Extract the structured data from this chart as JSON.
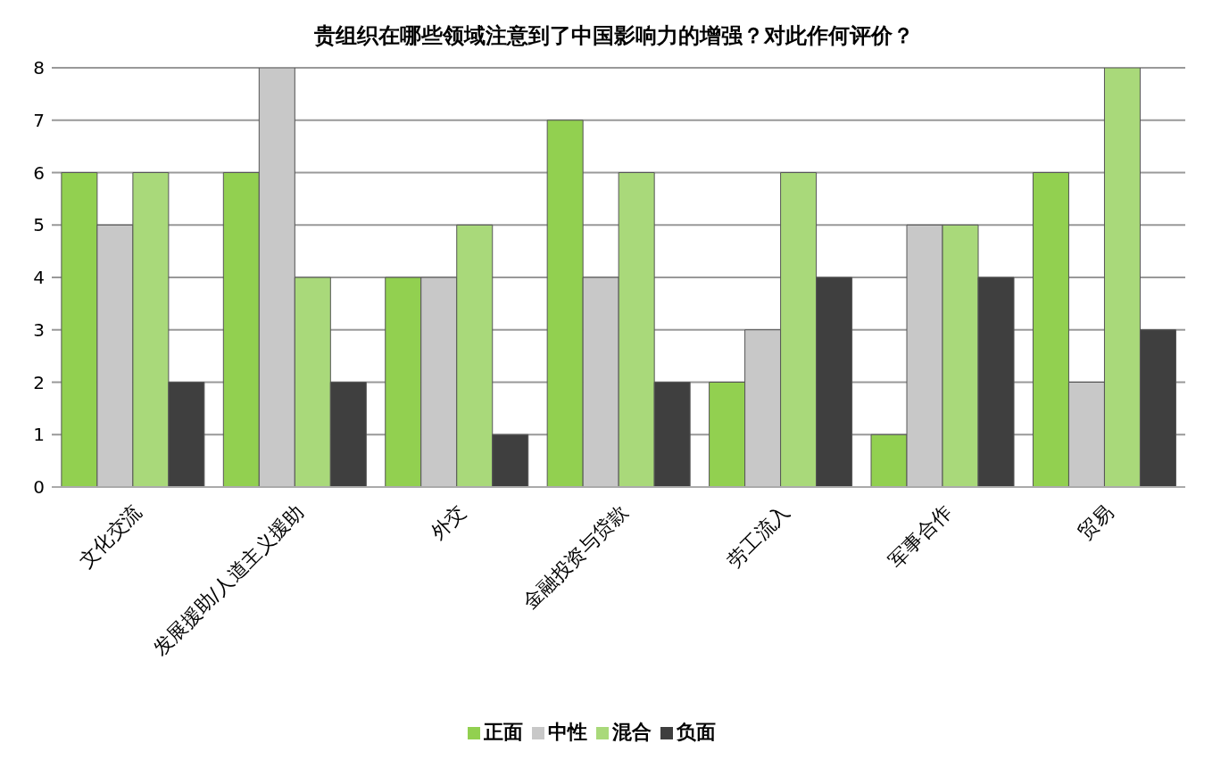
{
  "chart_data": {
    "type": "bar",
    "title": "贵组织在哪些领域注意到了中国影响力的增强？对此作何评价？",
    "categories": [
      "文化交流",
      "发展援助/人道主义援助",
      "外交",
      "金融投资与贷款",
      "劳工流入",
      "军事合作",
      "贸易"
    ],
    "series": [
      {
        "name": "正面",
        "color": "#92d050",
        "values": [
          6,
          6,
          4,
          7,
          2,
          1,
          6
        ]
      },
      {
        "name": "中性",
        "color": "#c8c8c8",
        "values": [
          5,
          8,
          4,
          4,
          3,
          5,
          2
        ]
      },
      {
        "name": "混合",
        "color": "#a9d97a",
        "values": [
          6,
          4,
          5,
          6,
          6,
          5,
          8
        ]
      },
      {
        "name": "负面",
        "color": "#3f3f3f",
        "values": [
          2,
          2,
          1,
          2,
          4,
          4,
          3
        ]
      }
    ],
    "ylim": [
      0,
      8
    ],
    "yticks": [
      0,
      1,
      2,
      3,
      4,
      5,
      6,
      7,
      8
    ],
    "grid": "y",
    "legend": "bottom"
  }
}
